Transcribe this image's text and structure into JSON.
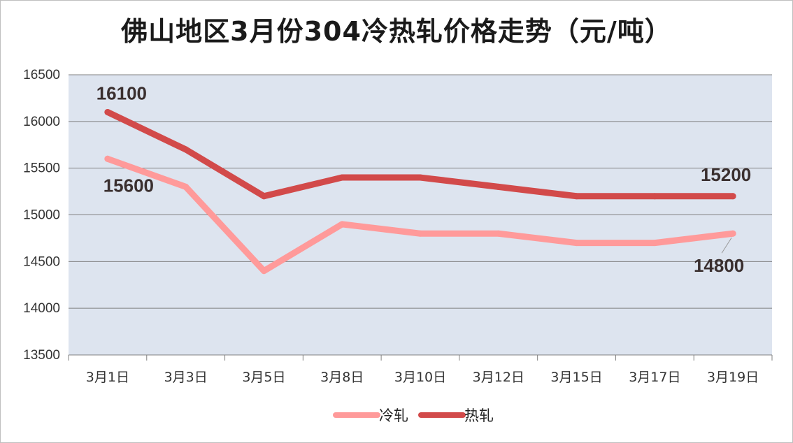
{
  "chart_data": {
    "type": "line",
    "title": "佛山地区3月份304冷热轧价格走势（元/吨）",
    "categories": [
      "3月1日",
      "3月3日",
      "3月5日",
      "3月8日",
      "3月10日",
      "3月12日",
      "3月15日",
      "3月17日",
      "3月19日"
    ],
    "series": [
      {
        "name": "冷轧",
        "color": "#ff9a9a",
        "values": [
          15600,
          15300,
          14400,
          14900,
          14800,
          14800,
          14700,
          14700,
          14800
        ]
      },
      {
        "name": "热轧",
        "color": "#d24a4a",
        "values": [
          16100,
          15700,
          15200,
          15400,
          15400,
          15300,
          15200,
          15200,
          15200
        ]
      }
    ],
    "yticks": [
      13500,
      14000,
      14500,
      15000,
      15500,
      16000,
      16500
    ],
    "ylim": [
      13500,
      16500
    ],
    "grid": true,
    "plot_background": "#dde4ef",
    "legend_position": "bottom",
    "data_labels": [
      {
        "series": 1,
        "index": 0,
        "text": "16100"
      },
      {
        "series": 0,
        "index": 0,
        "text": "15600"
      },
      {
        "series": 1,
        "index": 8,
        "text": "15200"
      },
      {
        "series": 0,
        "index": 8,
        "text": "14800"
      }
    ]
  }
}
